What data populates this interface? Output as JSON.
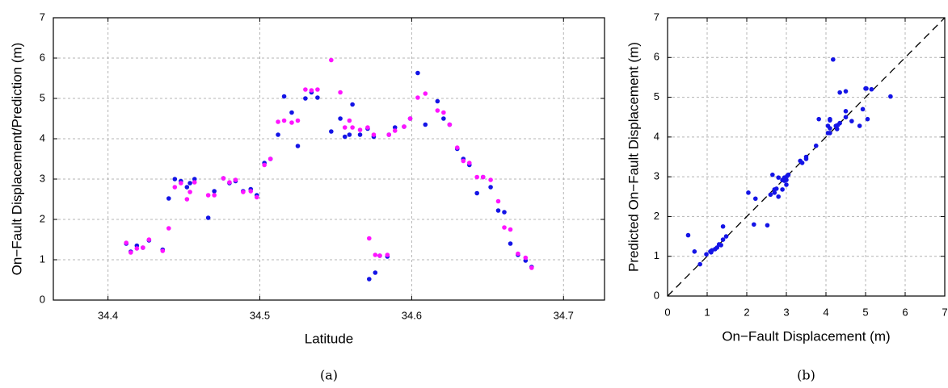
{
  "chart_data": [
    {
      "type": "scatter",
      "caption": "(a)",
      "xlabel": "Latitude",
      "ylabel": "On−Fault Displacement/Prediction (m)",
      "x": [
        34.412,
        34.415,
        34.419,
        34.423,
        34.427,
        34.436,
        34.44,
        34.444,
        34.448,
        34.452,
        34.454,
        34.457,
        34.466,
        34.47,
        34.476,
        34.48,
        34.484,
        34.489,
        34.494,
        34.498,
        34.503,
        34.507,
        34.512,
        34.516,
        34.521,
        34.525,
        34.53,
        34.534,
        34.538,
        34.547,
        34.553,
        34.556,
        34.559,
        34.561,
        34.566,
        34.571,
        34.572,
        34.575,
        34.576,
        34.579,
        34.584,
        34.585,
        34.589,
        34.595,
        34.599,
        34.604,
        34.609,
        34.617,
        34.621,
        34.625,
        34.63,
        34.634,
        34.638,
        34.643,
        34.647,
        34.652,
        34.657,
        34.661,
        34.665,
        34.67,
        34.675,
        34.679
      ],
      "series": [
        {
          "color": "#1414e6",
          "values": [
            1.4,
            1.2,
            1.35,
            1.3,
            1.48,
            1.25,
            2.52,
            3.0,
            2.95,
            2.8,
            2.9,
            3.0,
            2.04,
            2.7,
            3.02,
            2.9,
            2.95,
            2.7,
            2.75,
            2.6,
            3.4,
            3.5,
            4.1,
            5.05,
            4.65,
            3.82,
            5.0,
            5.15,
            5.02,
            4.18,
            4.5,
            4.05,
            4.1,
            4.85,
            4.1,
            4.25,
            0.52,
            4.05,
            0.68,
            1.1,
            1.08,
            4.1,
            4.28,
            4.3,
            4.5,
            5.63,
            4.35,
            4.93,
            4.5,
            4.35,
            3.75,
            3.5,
            3.35,
            2.65,
            3.05,
            2.8,
            2.22,
            2.18,
            1.4,
            1.12,
            0.98,
            0.82
          ]
        },
        {
          "color": "#ff14ff",
          "values": [
            1.42,
            1.18,
            1.28,
            1.3,
            1.5,
            1.22,
            1.78,
            2.8,
            2.9,
            2.5,
            2.68,
            2.92,
            2.6,
            2.6,
            3.02,
            2.92,
            2.98,
            2.68,
            2.7,
            2.55,
            3.35,
            3.5,
            4.42,
            4.45,
            4.4,
            4.45,
            5.22,
            5.2,
            5.22,
            5.95,
            5.15,
            4.28,
            4.45,
            4.28,
            4.22,
            4.28,
            1.53,
            4.1,
            1.12,
            1.1,
            1.12,
            4.1,
            4.2,
            4.3,
            4.5,
            5.02,
            5.12,
            4.7,
            4.65,
            4.35,
            3.78,
            3.45,
            3.4,
            3.05,
            3.05,
            2.98,
            2.45,
            1.8,
            1.75,
            1.15,
            1.05,
            0.8
          ]
        }
      ],
      "xlim": [
        34.364,
        34.727
      ],
      "xticks": [
        34.4,
        34.5,
        34.6,
        34.7
      ],
      "ylim": [
        0,
        7
      ],
      "yticks": [
        0,
        1,
        2,
        3,
        4,
        5,
        6,
        7
      ],
      "grid": true
    },
    {
      "type": "scatter",
      "caption": "(b)",
      "xlabel": "On−Fault Displacement (m)",
      "ylabel": "Predicted On−Fault Displacement (m)",
      "x": [
        1.4,
        1.2,
        1.35,
        1.3,
        1.48,
        1.25,
        2.52,
        3.0,
        2.95,
        2.8,
        2.9,
        3.0,
        2.04,
        2.7,
        3.02,
        2.9,
        2.95,
        2.7,
        2.75,
        2.6,
        3.4,
        3.5,
        4.1,
        5.05,
        4.65,
        3.82,
        5.0,
        5.15,
        5.02,
        4.18,
        4.5,
        4.05,
        4.1,
        4.85,
        4.1,
        4.25,
        0.52,
        4.05,
        0.68,
        1.1,
        1.08,
        4.1,
        4.28,
        4.3,
        4.5,
        5.63,
        4.35,
        4.93,
        4.5,
        4.35,
        3.75,
        3.5,
        3.35,
        2.65,
        3.05,
        2.8,
        2.22,
        2.18,
        1.4,
        1.12,
        0.98,
        0.82
      ],
      "series": [
        {
          "color": "#1414e6",
          "values": [
            1.42,
            1.18,
            1.28,
            1.3,
            1.5,
            1.22,
            1.78,
            2.8,
            2.9,
            2.5,
            2.68,
            2.92,
            2.6,
            2.6,
            3.02,
            2.92,
            2.98,
            2.68,
            2.7,
            2.55,
            3.35,
            3.5,
            4.42,
            4.45,
            4.4,
            4.45,
            5.22,
            5.2,
            5.22,
            5.95,
            5.15,
            4.28,
            4.45,
            4.28,
            4.22,
            4.28,
            1.53,
            4.1,
            1.12,
            1.1,
            1.12,
            4.1,
            4.2,
            4.3,
            4.5,
            5.02,
            5.12,
            4.7,
            4.65,
            4.35,
            3.78,
            3.45,
            3.4,
            3.05,
            3.05,
            2.98,
            2.45,
            1.8,
            1.75,
            1.15,
            1.05,
            0.8
          ]
        }
      ],
      "xlim": [
        0,
        7
      ],
      "xticks": [
        0,
        1,
        2,
        3,
        4,
        5,
        6,
        7
      ],
      "ylim": [
        0,
        7
      ],
      "yticks": [
        0,
        1,
        2,
        3,
        4,
        5,
        6,
        7
      ],
      "grid": true,
      "identity_line": true
    }
  ]
}
